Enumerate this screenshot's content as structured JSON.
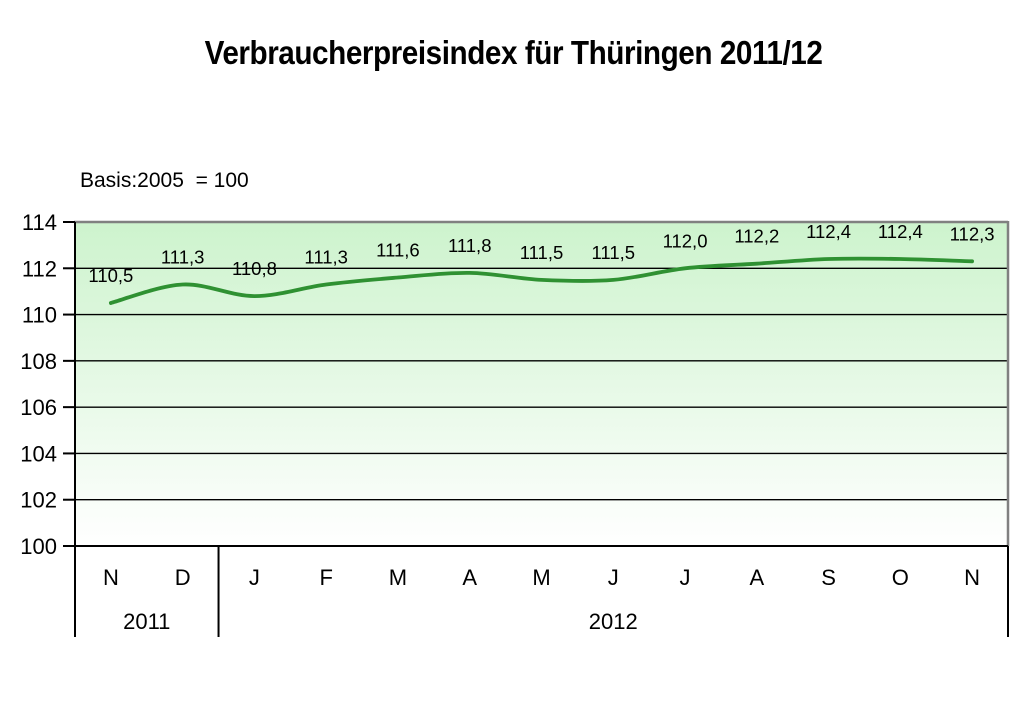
{
  "title": "Verbraucherpreisindex für Thüringen 2011/12",
  "basis_note": "Basis:2005  = 100",
  "chart_data": {
    "type": "line",
    "title": "Verbraucherpreisindex für Thüringen 2011/12",
    "subtitle": "Basis:2005  = 100",
    "x": [
      "N",
      "D",
      "J",
      "F",
      "M",
      "A",
      "M",
      "J",
      "J",
      "A",
      "S",
      "O",
      "N"
    ],
    "values": [
      110.5,
      111.3,
      110.8,
      111.3,
      111.6,
      111.8,
      111.5,
      111.5,
      112.0,
      112.2,
      112.4,
      112.4,
      112.3
    ],
    "point_labels": [
      "110,5",
      "111,3",
      "110,8",
      "111,3",
      "111,6",
      "111,8",
      "111,5",
      "111,5",
      "112,0",
      "112,2",
      "112,4",
      "112,4",
      "112,3"
    ],
    "year_groups": [
      {
        "label": "2011",
        "from_index": 0,
        "to_index": 1
      },
      {
        "label": "2012",
        "from_index": 2,
        "to_index": 12
      }
    ],
    "xlabel": "",
    "ylabel": "",
    "ylim": [
      100,
      114
    ],
    "yticks": [
      100,
      102,
      104,
      106,
      108,
      110,
      112,
      114
    ],
    "grid": true,
    "smooth": true,
    "legend": "none",
    "colors": {
      "line": "#2f9132",
      "plot_fill_top": "#cdf3cd",
      "plot_fill_bottom": "#ffffff",
      "plot_border_gray": "#808080",
      "axis_black": "#000000"
    }
  }
}
